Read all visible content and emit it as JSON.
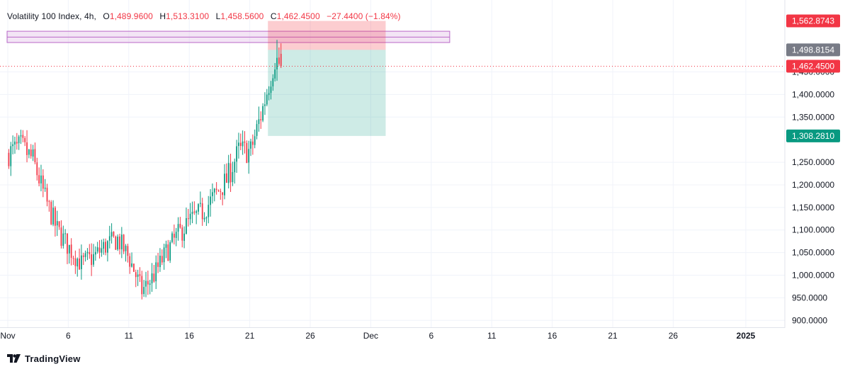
{
  "header": {
    "symbol": "Volatility 100 Index",
    "timeframe": "4h",
    "open_label": "O",
    "open": "1,489.9600",
    "high_label": "H",
    "high": "1,513.3100",
    "low_label": "L",
    "low": "1,458.5600",
    "close_label": "C",
    "close": "1,462.4500",
    "change": "−27.4400 (−1.84%)"
  },
  "branding": {
    "logo_text": "TradingView",
    "logo_icon": "tradingview-logo-icon"
  },
  "colors": {
    "up": "#089981",
    "down": "#f23645",
    "grid": "#f0f3fa",
    "target_zone": "#089981",
    "stop_zone": "#f23645",
    "supply_zone": "#e1bee7",
    "supply_border": "#ba68c8",
    "current_price_line": "#f23645",
    "entry_label_bg": "#787b86"
  },
  "chart_data": {
    "type": "candlestick",
    "title": "",
    "xlabel": "",
    "ylabel": "",
    "ylim": [
      870,
      1590
    ],
    "y_ticks": [
      "900.0000",
      "950.0000",
      "1,000.0000",
      "1,050.0000",
      "1,100.0000",
      "1,150.0000",
      "1,200.0000",
      "1,250.0000",
      "1,350.0000",
      "1,400.0000",
      "1,450.0000"
    ],
    "y_tick_values": [
      900,
      950,
      1000,
      1050,
      1100,
      1150,
      1200,
      1250,
      1350,
      1400,
      1450
    ],
    "x_ticks": [
      "Nov",
      "6",
      "11",
      "16",
      "21",
      "26",
      "Dec",
      "6",
      "11",
      "16",
      "21",
      "26",
      "2025"
    ],
    "x_tick_dates": [
      "2024-11-01",
      "2024-11-06",
      "2024-11-11",
      "2024-11-16",
      "2024-11-21",
      "2024-11-26",
      "2024-12-01",
      "2024-12-06",
      "2024-12-11",
      "2024-12-16",
      "2024-12-21",
      "2024-12-26",
      "2025-01-01"
    ],
    "x_start_date": "2024-11-01",
    "grid": true,
    "candle_period_hours": 4,
    "candles_per_day": 6,
    "anchors": [
      [
        "2024-11-01",
        1270
      ],
      [
        "2024-11-02",
        1285
      ],
      [
        "2024-11-03",
        1255
      ],
      [
        "2024-11-04",
        1170
      ],
      [
        "2024-11-05",
        1100
      ],
      [
        "2024-11-06",
        1060
      ],
      [
        "2024-11-07",
        1025
      ],
      [
        "2024-11-08",
        1040
      ],
      [
        "2024-11-09",
        1065
      ],
      [
        "2024-11-10",
        1080
      ],
      [
        "2024-11-11",
        1035
      ],
      [
        "2024-11-12",
        965
      ],
      [
        "2024-11-13",
        1000
      ],
      [
        "2024-11-14",
        1050
      ],
      [
        "2024-11-15",
        1090
      ],
      [
        "2024-11-16",
        1120
      ],
      [
        "2024-11-17",
        1140
      ],
      [
        "2024-11-18",
        1175
      ],
      [
        "2024-11-19",
        1210
      ],
      [
        "2024-11-20",
        1275
      ],
      [
        "2024-11-21",
        1275
      ],
      [
        "2024-11-22",
        1370
      ],
      [
        "2024-11-23",
        1480
      ],
      [
        "2024-11-23 12:00",
        1462.45
      ]
    ],
    "labeled_extremes": [
      {
        "date": "2024-11-02",
        "high": 1322
      },
      {
        "date": "2024-11-12",
        "low": 952
      },
      {
        "date": "2024-11-23",
        "high": 1521
      }
    ],
    "last_candle": {
      "open": 1489.96,
      "high": 1513.31,
      "low": 1458.56,
      "close": 1462.45
    },
    "supply_zone": {
      "top": 1540,
      "mid": 1527,
      "bottom": 1515,
      "from": "2024-11-01",
      "to": "2024-12-07"
    },
    "position": {
      "type": "short",
      "from": "2024-11-22 12:00",
      "to": "2024-12-02",
      "stop": 1562.8743,
      "entry": 1498.8154,
      "target": 1308.281
    },
    "price_labels": [
      {
        "role": "stop",
        "text": "1,562.8743",
        "value": 1562.8743
      },
      {
        "role": "entry",
        "text": "1,498.8154",
        "value": 1498.8154
      },
      {
        "role": "current",
        "text": "1,462.4500",
        "value": 1462.45
      },
      {
        "role": "target",
        "text": "1,308.2810",
        "value": 1308.281
      }
    ]
  }
}
